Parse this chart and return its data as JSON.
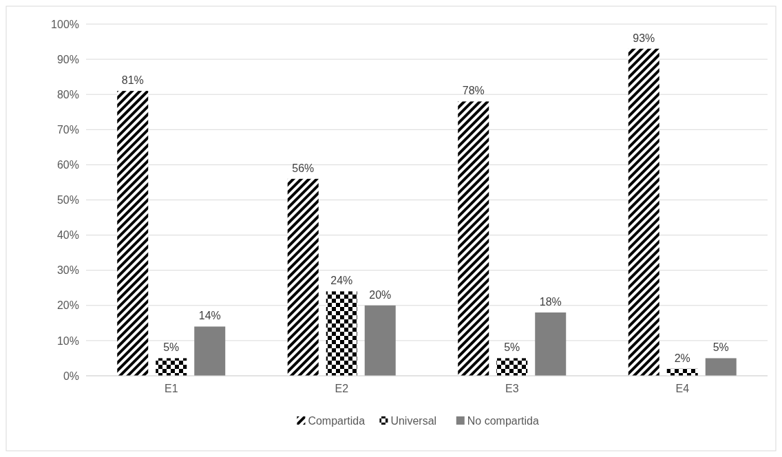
{
  "chart_data": {
    "type": "bar",
    "categories": [
      "E1",
      "E2",
      "E3",
      "E4"
    ],
    "series": [
      {
        "name": "Compartida",
        "color": "#000000",
        "values": [
          81,
          56,
          78,
          93
        ],
        "value_labels": [
          "81%",
          "56%",
          "78%",
          "93%"
        ]
      },
      {
        "name": "Universal",
        "color": "#000000",
        "values": [
          5,
          24,
          5,
          2
        ],
        "value_labels": [
          "5%",
          "24%",
          "5%",
          "2%"
        ]
      },
      {
        "name": "No compartida",
        "color": "#808080",
        "values": [
          14,
          20,
          18,
          5
        ],
        "value_labels": [
          "14%",
          "20%",
          "18%",
          "5%"
        ]
      }
    ],
    "ylim": [
      0,
      100
    ],
    "yticks": [
      {
        "value": 0,
        "label": "0%"
      },
      {
        "value": 10,
        "label": "10%"
      },
      {
        "value": 20,
        "label": "20%"
      },
      {
        "value": 30,
        "label": "30%"
      },
      {
        "value": 40,
        "label": "40%"
      },
      {
        "value": 50,
        "label": "50%"
      },
      {
        "value": 60,
        "label": "60%"
      },
      {
        "value": 70,
        "label": "70%"
      },
      {
        "value": 80,
        "label": "80%"
      },
      {
        "value": 90,
        "label": "90%"
      },
      {
        "value": 100,
        "label": "100%"
      }
    ],
    "grid": "y",
    "legend": "bottom"
  }
}
